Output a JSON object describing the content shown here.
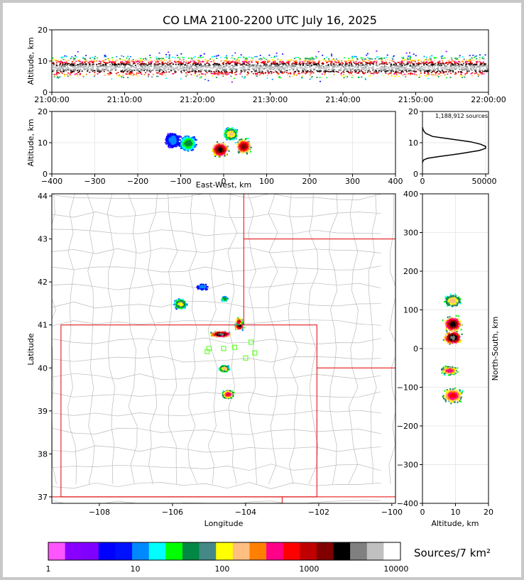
{
  "chart_data": [
    {
      "id": "time_height",
      "type": "heatmap",
      "title": "CO LMA 2100-2200 UTC July 16, 2025",
      "ylabel": "Altitude, km",
      "xlabel": "",
      "x_ticks": [
        "21:00:00",
        "21:10:00",
        "21:20:00",
        "21:30:00",
        "21:40:00",
        "21:50:00",
        "22:00:00"
      ],
      "ylim": [
        0,
        20
      ],
      "y_ticks": [
        0,
        10,
        20
      ]
    },
    {
      "id": "ew_altitude",
      "type": "heatmap",
      "xlabel": "East-West, km",
      "ylabel": "Altitude, km",
      "xlim": [
        -400,
        400
      ],
      "x_ticks": [
        -400,
        -300,
        -200,
        -100,
        0,
        100,
        200,
        300,
        400
      ],
      "ylim": [
        0,
        20
      ],
      "y_ticks": [
        0,
        10,
        20
      ]
    },
    {
      "id": "altitude_histogram",
      "type": "line",
      "annotation": "1,188,912 sources",
      "xlim": [
        0,
        50000
      ],
      "x_ticks": [
        0,
        50000
      ],
      "ylim": [
        0,
        20
      ],
      "y_ticks": [
        0,
        10,
        20
      ],
      "series": [
        {
          "x": [
            0,
            200,
            1000,
            4000,
            12000,
            30000,
            45000,
            50000,
            50000,
            46000,
            38000,
            20000,
            8000,
            2500,
            600,
            0
          ],
          "y": [
            3.5,
            4.0,
            4.5,
            5.0,
            5.5,
            6.5,
            7.5,
            8.2,
            8.8,
            9.5,
            10.3,
            11.3,
            12.0,
            13.0,
            14.0,
            15.0
          ]
        }
      ]
    },
    {
      "id": "plan_view",
      "type": "heatmap",
      "xlabel": "Longitude",
      "ylabel": "Latitude",
      "xlim": [
        -109.3,
        -99.9
      ],
      "ylim": [
        36.85,
        44.05
      ],
      "x_ticks": [
        -108,
        -106,
        -104,
        -102,
        -100
      ],
      "y_ticks": [
        37,
        38,
        39,
        40,
        41,
        42,
        43,
        44
      ],
      "stations": [
        [
          -105.0,
          40.45
        ],
        [
          -104.6,
          40.45
        ],
        [
          -104.3,
          40.48
        ],
        [
          -103.85,
          40.6
        ],
        [
          -103.75,
          40.35
        ],
        [
          -104.0,
          40.23
        ],
        [
          -105.05,
          40.38
        ]
      ]
    },
    {
      "id": "ns_altitude",
      "type": "heatmap",
      "xlabel": "Altitude, km",
      "ylabel": "North-South, km",
      "xlim": [
        0,
        20
      ],
      "x_ticks": [
        0,
        10,
        20
      ],
      "ylim": [
        -400,
        400
      ],
      "y_ticks": [
        -400,
        -300,
        -200,
        -100,
        0,
        100,
        200,
        300,
        400
      ]
    }
  ],
  "colorbar": {
    "label": "Sources/7 km²",
    "tick_labels": [
      "1",
      "10",
      "100",
      "1000",
      "10000"
    ],
    "colors": [
      "#ff55ff",
      "#8800ff",
      "#8000ff",
      "#0000ff",
      "#0011ff",
      "#0088ff",
      "#00ffff",
      "#00ff00",
      "#008844",
      "#448888",
      "#ffff00",
      "#ffbf80",
      "#ff8000",
      "#ff0088",
      "#ff0000",
      "#c00000",
      "#800000",
      "#000000",
      "#808080",
      "#c0c0c0",
      "#ffffff"
    ]
  }
}
